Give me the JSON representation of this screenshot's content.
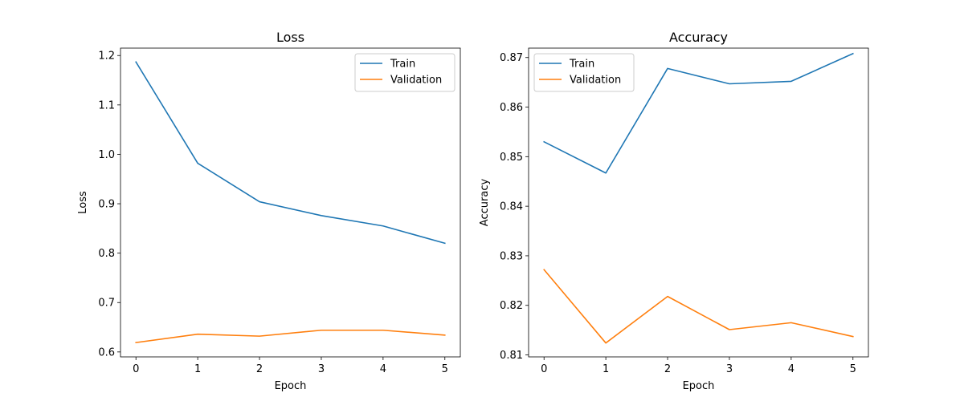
{
  "chart_data": [
    {
      "type": "line",
      "title": "Loss",
      "xlabel": "Epoch",
      "ylabel": "Loss",
      "x": [
        0,
        1,
        2,
        3,
        4,
        5
      ],
      "xlim": [
        -0.25,
        5.25
      ],
      "ylim": [
        0.59,
        1.215
      ],
      "xticks": [
        "0",
        "1",
        "2",
        "3",
        "4",
        "5"
      ],
      "yticks": [
        "0.6",
        "0.7",
        "0.8",
        "0.9",
        "1.0",
        "1.1",
        "1.2"
      ],
      "ytick_values": [
        0.6,
        0.7,
        0.8,
        0.9,
        1.0,
        1.1,
        1.2
      ],
      "legend_position": "top-right",
      "grid": false,
      "series": [
        {
          "name": "Train",
          "color": "#1f77b4",
          "values": [
            1.187,
            0.982,
            0.904,
            0.876,
            0.855,
            0.82
          ]
        },
        {
          "name": "Validation",
          "color": "#ff7f0e",
          "values": [
            0.619,
            0.636,
            0.632,
            0.644,
            0.644,
            0.634
          ]
        }
      ]
    },
    {
      "type": "line",
      "title": "Accuracy",
      "xlabel": "Epoch",
      "ylabel": "Accuracy",
      "x": [
        0,
        1,
        2,
        3,
        4,
        5
      ],
      "xlim": [
        -0.25,
        5.25
      ],
      "ylim": [
        0.8096,
        0.8719
      ],
      "xticks": [
        "0",
        "1",
        "2",
        "3",
        "4",
        "5"
      ],
      "yticks": [
        "0.81",
        "0.82",
        "0.83",
        "0.84",
        "0.85",
        "0.86",
        "0.87"
      ],
      "ytick_values": [
        0.81,
        0.82,
        0.83,
        0.84,
        0.85,
        0.86,
        0.87
      ],
      "legend_position": "top-left",
      "grid": false,
      "series": [
        {
          "name": "Train",
          "color": "#1f77b4",
          "values": [
            0.853,
            0.8467,
            0.8678,
            0.8647,
            0.8652,
            0.8708
          ]
        },
        {
          "name": "Validation",
          "color": "#ff7f0e",
          "values": [
            0.8272,
            0.8124,
            0.8218,
            0.8151,
            0.8165,
            0.8137
          ]
        }
      ]
    }
  ]
}
